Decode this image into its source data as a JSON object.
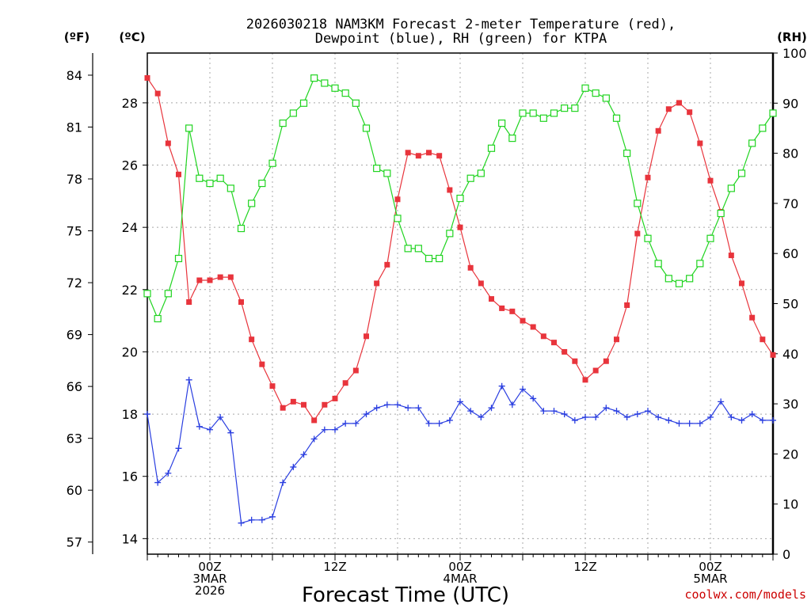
{
  "chart_data": {
    "type": "line",
    "title_line1": "2026030218 NAM3KM Forecast 2-meter Temperature (red),",
    "title_line2": "Dewpoint (blue), RH (green) for KTPA",
    "xlabel": "Forecast Time (UTC)",
    "credit": "coolwx.com/models",
    "left_outer_unit": "(ºF)",
    "left_inner_unit": "(ºC)",
    "right_unit": "(RH)",
    "x_hours_range": [
      0,
      60
    ],
    "x_unit": "forecast hour from 2026030218",
    "ylim_c": [
      13.5,
      29.6
    ],
    "ylim_rh": [
      0,
      100
    ],
    "yticks_c": [
      14,
      16,
      18,
      20,
      22,
      24,
      26,
      28
    ],
    "yticks_f": [
      57,
      60,
      63,
      66,
      69,
      72,
      75,
      78,
      81,
      84
    ],
    "yticks_rh": [
      0,
      10,
      20,
      30,
      40,
      50,
      60,
      70,
      80,
      90,
      100
    ],
    "x_ticks": [
      {
        "hour": 6,
        "line1": "00Z",
        "line2": "3MAR",
        "line3": "2026"
      },
      {
        "hour": 18,
        "line1": "12Z",
        "line2": "",
        "line3": ""
      },
      {
        "hour": 30,
        "line1": "00Z",
        "line2": "4MAR",
        "line3": ""
      },
      {
        "hour": 42,
        "line1": "12Z",
        "line2": "",
        "line3": ""
      },
      {
        "hour": 54,
        "line1": "00Z",
        "line2": "5MAR",
        "line3": ""
      }
    ],
    "series": [
      {
        "name": "Temperature",
        "units": "°C",
        "color": "#e8343c",
        "marker": "filled-square",
        "hours": [
          0,
          1,
          2,
          3,
          4,
          5,
          6,
          7,
          8,
          9,
          10,
          11,
          12,
          13,
          14,
          15,
          16,
          17,
          18,
          19,
          20,
          21,
          22,
          23,
          24,
          25,
          26,
          27,
          28,
          29,
          30,
          31,
          32,
          33,
          34,
          35,
          36,
          37,
          38,
          39,
          40,
          41,
          42,
          43,
          44,
          45,
          46,
          47,
          48,
          49,
          50,
          51,
          52,
          53,
          54,
          55,
          56,
          57,
          58,
          59,
          60
        ],
        "values": [
          28.8,
          28.3,
          26.7,
          25.7,
          21.6,
          22.3,
          22.3,
          22.4,
          22.4,
          21.6,
          20.4,
          19.6,
          18.9,
          18.2,
          18.4,
          18.3,
          17.8,
          18.3,
          18.5,
          19.0,
          19.4,
          20.5,
          22.2,
          22.8,
          24.9,
          26.4,
          26.3,
          26.4,
          26.3,
          25.2,
          24.0,
          22.7,
          22.2,
          21.7,
          21.4,
          21.3,
          21.0,
          20.8,
          20.5,
          20.3,
          20.0,
          19.7,
          19.1,
          19.4,
          19.7,
          20.4,
          21.5,
          23.8,
          25.6,
          27.1,
          27.8,
          28.0,
          27.7,
          26.7,
          25.5,
          24.5,
          23.1,
          22.2,
          21.1,
          20.4,
          19.9
        ]
      },
      {
        "name": "Dewpoint",
        "units": "°C",
        "color": "#2a3ee0",
        "marker": "plus",
        "hours": [
          0,
          1,
          2,
          3,
          4,
          5,
          6,
          7,
          8,
          9,
          10,
          11,
          12,
          13,
          14,
          15,
          16,
          17,
          18,
          19,
          20,
          21,
          22,
          23,
          24,
          25,
          26,
          27,
          28,
          29,
          30,
          31,
          32,
          33,
          34,
          35,
          36,
          37,
          38,
          39,
          40,
          41,
          42,
          43,
          44,
          45,
          46,
          47,
          48,
          49,
          50,
          51,
          52,
          53,
          54,
          55,
          56,
          57,
          58,
          59,
          60
        ],
        "values": [
          18.0,
          15.8,
          16.1,
          16.9,
          19.1,
          17.6,
          17.5,
          17.9,
          17.4,
          14.5,
          14.6,
          14.6,
          14.7,
          15.8,
          16.3,
          16.7,
          17.2,
          17.5,
          17.5,
          17.7,
          17.7,
          18.0,
          18.2,
          18.3,
          18.3,
          18.2,
          18.2,
          17.7,
          17.7,
          17.8,
          18.4,
          18.1,
          17.9,
          18.2,
          18.9,
          18.3,
          18.8,
          18.5,
          18.1,
          18.1,
          18.0,
          17.8,
          17.9,
          17.9,
          18.2,
          18.1,
          17.9,
          18.0,
          18.1,
          17.9,
          17.8,
          17.7,
          17.7,
          17.7,
          17.9,
          18.4,
          17.9,
          17.8,
          18.0,
          17.8,
          17.8
        ]
      },
      {
        "name": "Relative Humidity",
        "units": "%",
        "color": "#20d420",
        "marker": "open-square",
        "axis": "right",
        "hours": [
          0,
          1,
          2,
          3,
          4,
          5,
          6,
          7,
          8,
          9,
          10,
          11,
          12,
          13,
          14,
          15,
          16,
          17,
          18,
          19,
          20,
          21,
          22,
          23,
          24,
          25,
          26,
          27,
          28,
          29,
          30,
          31,
          32,
          33,
          34,
          35,
          36,
          37,
          38,
          39,
          40,
          41,
          42,
          43,
          44,
          45,
          46,
          47,
          48,
          49,
          50,
          51,
          52,
          53,
          54,
          55,
          56,
          57,
          58,
          59,
          60
        ],
        "values": [
          52,
          47,
          52,
          59,
          85,
          75,
          74,
          75,
          73,
          65,
          70,
          74,
          78,
          86,
          88,
          90,
          95,
          94,
          93,
          92,
          90,
          85,
          77,
          76,
          67,
          61,
          61,
          59,
          59,
          64,
          71,
          75,
          76,
          81,
          86,
          83,
          88,
          88,
          87,
          88,
          89,
          89,
          93,
          92,
          91,
          87,
          80,
          70,
          63,
          58,
          55,
          54,
          55,
          58,
          63,
          68,
          73,
          76,
          82,
          85,
          88
        ]
      }
    ]
  }
}
